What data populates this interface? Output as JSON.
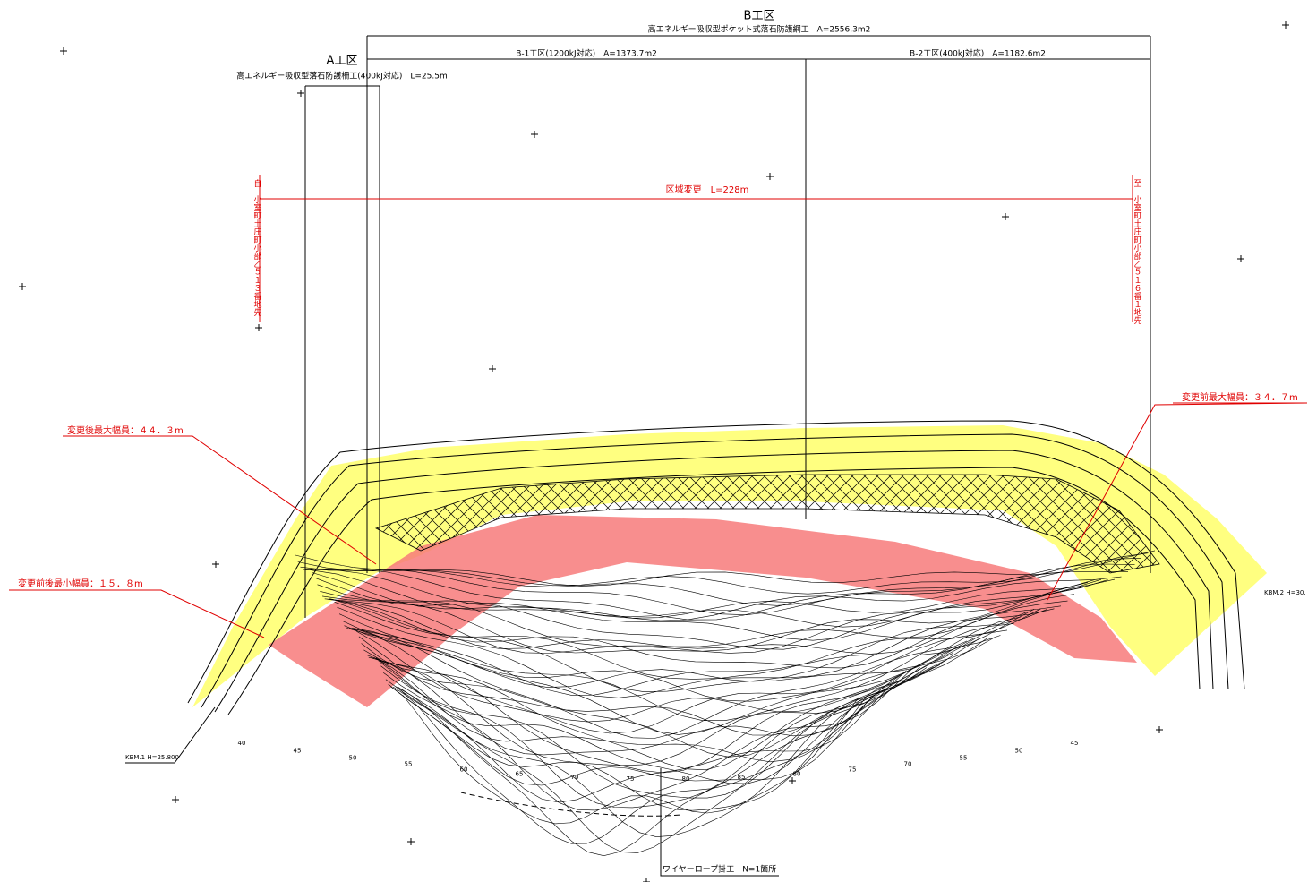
{
  "header": {
    "zone_b": "B工区",
    "zone_b_desc": "高エネルギー吸収型ポケット式落石防護網工　A=2556.3m2",
    "zone_a": "A工区",
    "zone_a_desc": "高エネルギー吸収型落石防護柵工(400kJ対応)　L=25.5m",
    "zone_b1": "B-1工区(1200kJ対応)　A=1373.7m2",
    "zone_b2": "B-2工区(400kJ対応)　A=1182.6m2"
  },
  "change": {
    "label": "区域変更　L=228m",
    "from": "自　小室町土庄町小部乙５１３番地先",
    "to": "至　小室町土庄町小部乙５１６番１地先"
  },
  "annotations": {
    "max_after": "変更後最大幅員：４４．３m",
    "max_before": "変更前最大幅員：３４．７m",
    "min": "変更前後最小幅員：１５．８m",
    "wire": "ワイヤーロープ掛工　N=1箇所",
    "kbm1": "KBM.1 H=25.800",
    "kbm2": "KBM.2 H=30."
  },
  "contours": [
    "40",
    "45",
    "50",
    "55",
    "60",
    "65",
    "70",
    "75",
    "80",
    "85",
    "80",
    "75",
    "70",
    "55",
    "50",
    "45"
  ]
}
